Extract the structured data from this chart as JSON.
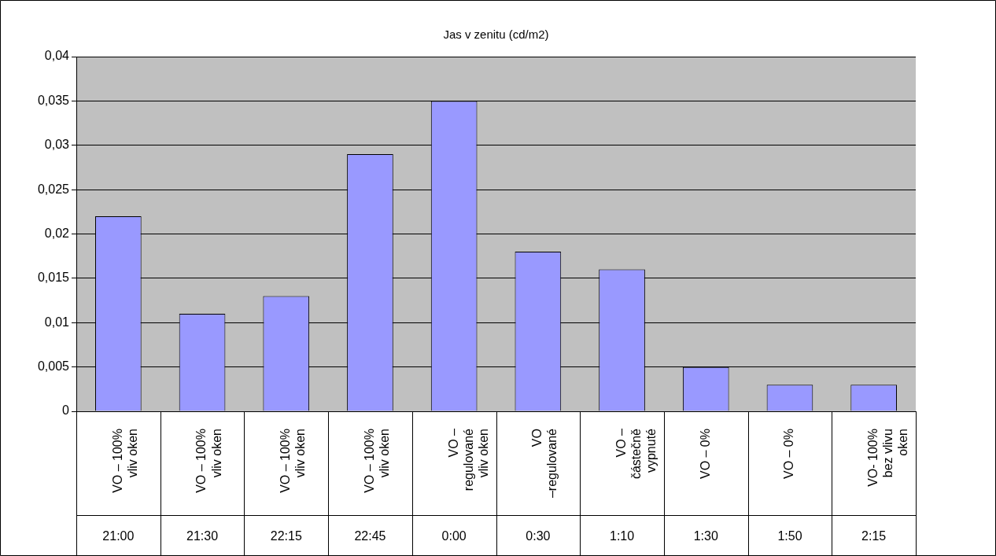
{
  "chart_data": {
    "type": "bar",
    "title": "Jas v zenitu (cd/m2)",
    "categories": [
      "VO – 100% vliv oken",
      "VO – 100% vliv oken",
      "VO – 100% vliv oken",
      "VO – 100% vliv oken",
      "VO – regulované vliv oken",
      "VO –regulované",
      "VO – částečně vypnuté",
      "VO – 0%",
      "VO – 0%",
      "VO- 100% bez vlivu oken"
    ],
    "values": [
      0.022,
      0.011,
      0.013,
      0.029,
      0.035,
      0.018,
      0.016,
      0.005,
      0.003,
      0.003
    ],
    "color": "#9999ff",
    "ylim": [
      0,
      0.04
    ],
    "yticks": [
      {
        "value": 0,
        "label": "0"
      },
      {
        "value": 0.005,
        "label": "0,005"
      },
      {
        "value": 0.01,
        "label": "0,01"
      },
      {
        "value": 0.015,
        "label": "0,015"
      },
      {
        "value": 0.02,
        "label": "0,02"
      },
      {
        "value": 0.025,
        "label": "0,025"
      },
      {
        "value": 0.03,
        "label": "0,03"
      },
      {
        "value": 0.035,
        "label": "0,035"
      },
      {
        "value": 0.04,
        "label": "0,04"
      }
    ],
    "grid": "y",
    "annotations": [
      "21:00",
      "21:30",
      "22:15",
      "22:45",
      "0:00",
      "0:30",
      "1:10",
      "1:30",
      "1:50",
      "2:15"
    ]
  }
}
